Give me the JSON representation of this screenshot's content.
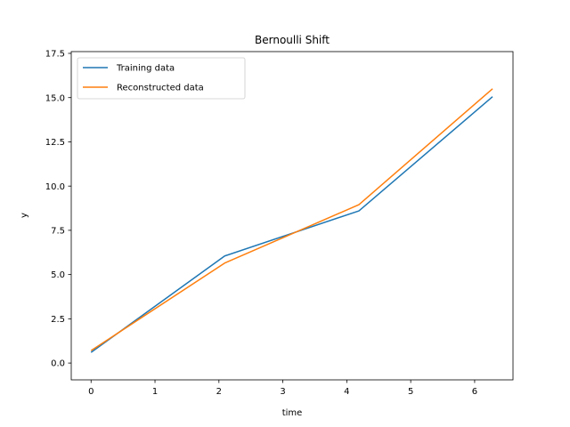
{
  "chart_data": {
    "type": "line",
    "title": "Bernoulli Shift",
    "xlabel": "time",
    "ylabel": "y",
    "xlim": [
      -0.31,
      6.6
    ],
    "ylim": [
      -0.95,
      17.6
    ],
    "xticks": [
      0,
      1,
      2,
      3,
      4,
      5,
      6
    ],
    "xtick_labels": [
      "0",
      "1",
      "2",
      "3",
      "4",
      "5",
      "6"
    ],
    "yticks": [
      0.0,
      2.5,
      5.0,
      7.5,
      10.0,
      12.5,
      15.0,
      17.5
    ],
    "ytick_labels": [
      "0.0",
      "2.5",
      "5.0",
      "7.5",
      "10.0",
      "12.5",
      "15.0",
      "17.5"
    ],
    "grid": false,
    "legend_position": "top-left",
    "series": [
      {
        "name": "Training data",
        "color": "#1f77b4",
        "x": [
          0,
          2.09,
          4.19,
          6.28
        ],
        "y": [
          0.6,
          6.05,
          8.6,
          15.05
        ]
      },
      {
        "name": "Reconstructed data",
        "color": "#ff7f0e",
        "x": [
          0,
          2.09,
          4.19,
          6.28
        ],
        "y": [
          0.7,
          5.65,
          8.95,
          15.5
        ]
      }
    ]
  }
}
